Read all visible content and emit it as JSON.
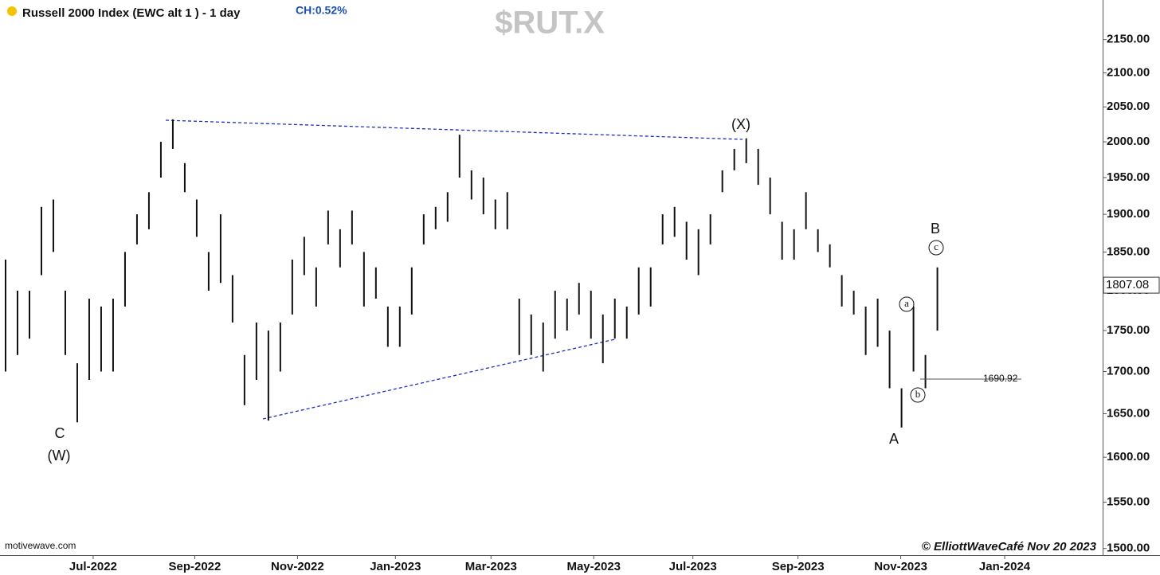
{
  "chart_data": {
    "type": "ohlc",
    "title": "Russell 2000 Index (EWC alt 1 ) - 1 day",
    "change": "CH:0.52%",
    "symbol": "$RUT.X",
    "source": "motivewave.com",
    "copyright": "© ElliottWaveCafé Nov 20 2023",
    "color": "#111111",
    "log_scale": true,
    "ylim": [
      1493,
      2211
    ],
    "yticks": [
      {
        "value": 1500,
        "label": "1500.00"
      },
      {
        "value": 1550,
        "label": "1550.00"
      },
      {
        "value": 1600,
        "label": "1600.00"
      },
      {
        "value": 1650,
        "label": "1650.00"
      },
      {
        "value": 1700,
        "label": "1700.00"
      },
      {
        "value": 1750,
        "label": "1750.00"
      },
      {
        "value": 1800,
        "label": "1800.00"
      },
      {
        "value": 1850,
        "label": "1850.00"
      },
      {
        "value": 1900,
        "label": "1900.00"
      },
      {
        "value": 1950,
        "label": "1950.00"
      },
      {
        "value": 2000,
        "label": "2000.00"
      },
      {
        "value": 2050,
        "label": "2050.00"
      },
      {
        "value": 2100,
        "label": "2100.00"
      },
      {
        "value": 2150,
        "label": "2150.00"
      }
    ],
    "xlim": [
      0,
      92.3
    ],
    "xticks": [
      {
        "value": 7.8,
        "label": "Jul-2022"
      },
      {
        "value": 16.3,
        "label": "Sep-2022"
      },
      {
        "value": 24.9,
        "label": "Nov-2022"
      },
      {
        "value": 33.1,
        "label": "Jan-2023"
      },
      {
        "value": 41.1,
        "label": "Mar-2023"
      },
      {
        "value": 49.7,
        "label": "May-2023"
      },
      {
        "value": 58,
        "label": "Jul-2023"
      },
      {
        "value": 66.8,
        "label": "Sep-2023"
      },
      {
        "value": 75.4,
        "label": "Nov-2023"
      },
      {
        "value": 84.1,
        "label": "Jan-2024"
      }
    ],
    "high": [
      1840,
      1800,
      1800,
      1910,
      1920,
      1800,
      1710,
      1790,
      1780,
      1790,
      1850,
      1900,
      1930,
      2000,
      2032,
      1970,
      1920,
      1850,
      1900,
      1820,
      1720,
      1760,
      1750,
      1760,
      1840,
      1870,
      1830,
      1905,
      1880,
      1905,
      1850,
      1830,
      1780,
      1780,
      1830,
      1900,
      1910,
      1930,
      2010,
      1960,
      1950,
      1920,
      1930,
      1790,
      1770,
      1760,
      1800,
      1790,
      1810,
      1800,
      1770,
      1790,
      1780,
      1830,
      1830,
      1900,
      1910,
      1890,
      1880,
      1900,
      1960,
      1990,
      2005,
      1990,
      1950,
      1890,
      1880,
      1930,
      1880,
      1860,
      1820,
      1800,
      1780,
      1790,
      1750,
      1680,
      1780,
      1720,
      1830
    ],
    "low": [
      1700,
      1720,
      1740,
      1820,
      1850,
      1720,
      1640,
      1690,
      1700,
      1700,
      1780,
      1860,
      1880,
      1950,
      1990,
      1930,
      1870,
      1800,
      1810,
      1760,
      1660,
      1690,
      1642,
      1700,
      1770,
      1820,
      1780,
      1860,
      1830,
      1860,
      1780,
      1790,
      1730,
      1730,
      1770,
      1860,
      1880,
      1890,
      1950,
      1920,
      1900,
      1880,
      1880,
      1720,
      1720,
      1700,
      1740,
      1750,
      1770,
      1740,
      1710,
      1740,
      1740,
      1770,
      1780,
      1860,
      1870,
      1840,
      1820,
      1860,
      1930,
      1960,
      1970,
      1940,
      1900,
      1840,
      1840,
      1880,
      1850,
      1830,
      1780,
      1770,
      1720,
      1730,
      1680,
      1634,
      1700,
      1680,
      1750
    ],
    "last": 1807.08,
    "level": 1690.92,
    "wave_labels": [
      "C",
      "(W)",
      "(X)",
      "A",
      "B"
    ],
    "circled_labels": [
      "a",
      "b",
      "c"
    ]
  }
}
